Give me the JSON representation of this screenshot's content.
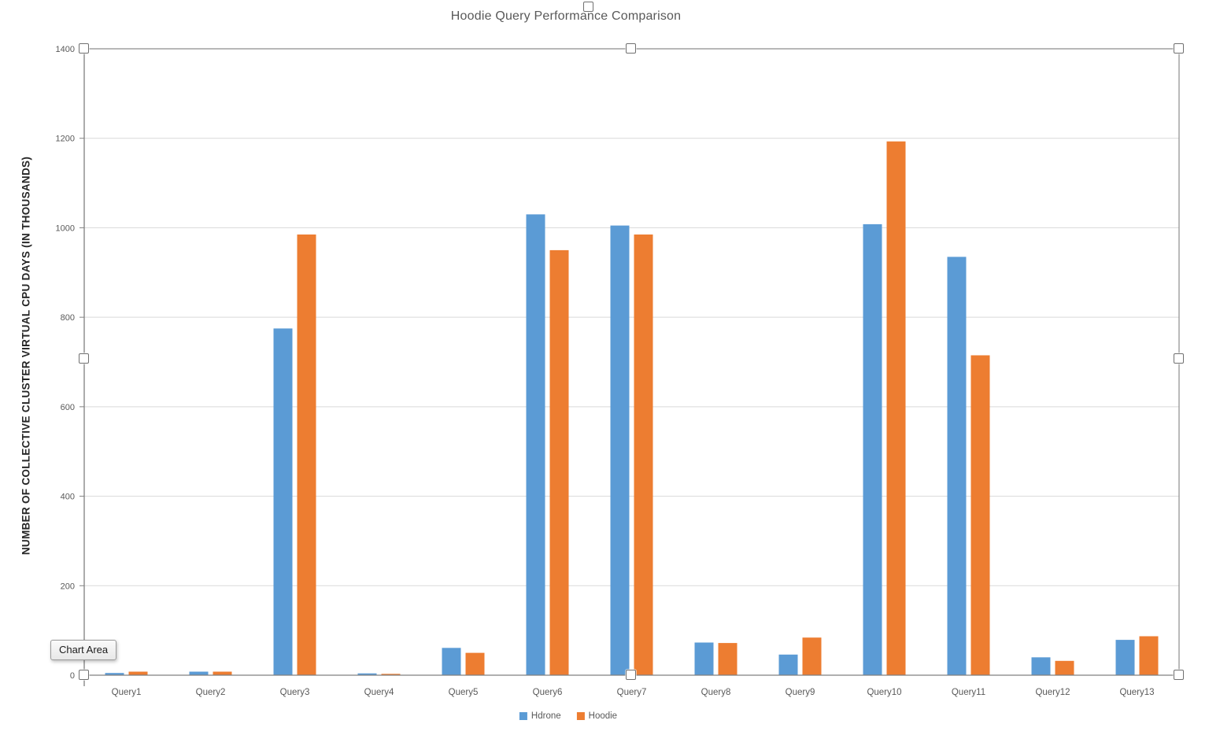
{
  "window": {
    "tooltip": "Chart Area"
  },
  "chart_data": {
    "type": "bar",
    "title": "Hoodie Query Performance Comparison",
    "ylabel": "NUMBER OF COLLECTIVE CLUSTER VIRTUAL CPU DAYS (IN THOUSANDS)",
    "xlabel": "",
    "categories": [
      "Query1",
      "Query2",
      "Query3",
      "Query4",
      "Query5",
      "Query6",
      "Query7",
      "Query8",
      "Query9",
      "Query10",
      "Query11",
      "Query12",
      "Query13"
    ],
    "series": [
      {
        "name": "Hdrone",
        "color": "#5B9BD5",
        "values": [
          5,
          8,
          775,
          4,
          61,
          1030,
          1005,
          73,
          46,
          1008,
          935,
          40,
          79
        ]
      },
      {
        "name": "Hoodie",
        "color": "#ED7D31",
        "values": [
          8,
          8,
          985,
          3,
          50,
          950,
          985,
          72,
          84,
          1193,
          715,
          32,
          87
        ]
      }
    ],
    "ylim": [
      0,
      1400
    ],
    "ytick_step": 200,
    "ytick_labels": [
      "0",
      "200",
      "400",
      "600",
      "800",
      "1000",
      "1200",
      "1400"
    ],
    "grid": true,
    "legend_position": "bottom",
    "colors": {
      "gridline": "#d9d9d9",
      "axis_line": "#808080",
      "selection_border": "#8c8c8c",
      "tick_label": "#595959",
      "title_text": "#595959"
    }
  }
}
